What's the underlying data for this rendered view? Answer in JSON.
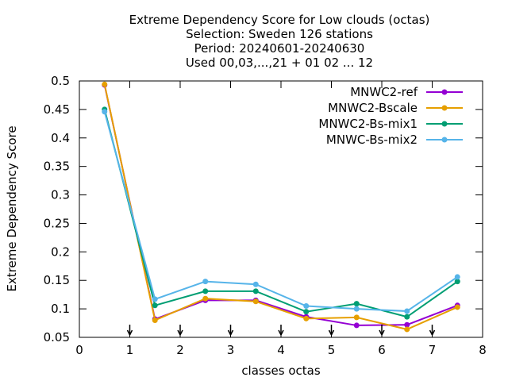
{
  "chart_data": {
    "type": "line",
    "title_lines": [
      "Extreme Dependency Score  for Low clouds (octas)",
      "Selection: Sweden    126 stations",
      "Period: 20240601-20240630",
      "Used 00,03,...,21 + 01 02 ... 12"
    ],
    "xlabel": "classes octas",
    "ylabel": "Extreme Dependency Score",
    "xlim": [
      0,
      8
    ],
    "ylim": [
      0.05,
      0.5
    ],
    "x_ticks": [
      0,
      1,
      2,
      3,
      4,
      5,
      6,
      7,
      8
    ],
    "x_tick_labels": [
      "0",
      "1",
      "2",
      "3",
      "4",
      "5",
      "6",
      "7",
      "8"
    ],
    "y_ticks": [
      0.05,
      0.1,
      0.15,
      0.2,
      0.25,
      0.3,
      0.35,
      0.4,
      0.45,
      0.5
    ],
    "y_tick_labels": [
      "0.05",
      "0.1",
      "0.15",
      "0.2",
      "0.25",
      "0.3",
      "0.35",
      "0.4",
      "0.45",
      "0.5"
    ],
    "threshold_markers_x": [
      1,
      2,
      3,
      4,
      5,
      6,
      7
    ],
    "legend_position": "top-right",
    "grid": false,
    "x": [
      0.5,
      1.5,
      2.5,
      3.5,
      4.5,
      5.5,
      6.5,
      7.5
    ],
    "series": [
      {
        "name": "MNWC2-ref",
        "color": "#9400d3",
        "values": [
          0.493,
          0.082,
          0.115,
          0.115,
          0.086,
          0.071,
          0.072,
          0.106
        ]
      },
      {
        "name": "MNWC2-Bscale",
        "color": "#e69f00",
        "values": [
          0.494,
          0.08,
          0.118,
          0.113,
          0.083,
          0.085,
          0.064,
          0.103
        ]
      },
      {
        "name": "MNWC2-Bs-mix1",
        "color": "#009e73",
        "values": [
          0.45,
          0.106,
          0.131,
          0.131,
          0.095,
          0.109,
          0.086,
          0.148
        ]
      },
      {
        "name": "MNWC-Bs-mix2",
        "color": "#56b4e9",
        "values": [
          0.446,
          0.117,
          0.148,
          0.143,
          0.105,
          0.1,
          0.096,
          0.156
        ]
      }
    ]
  }
}
